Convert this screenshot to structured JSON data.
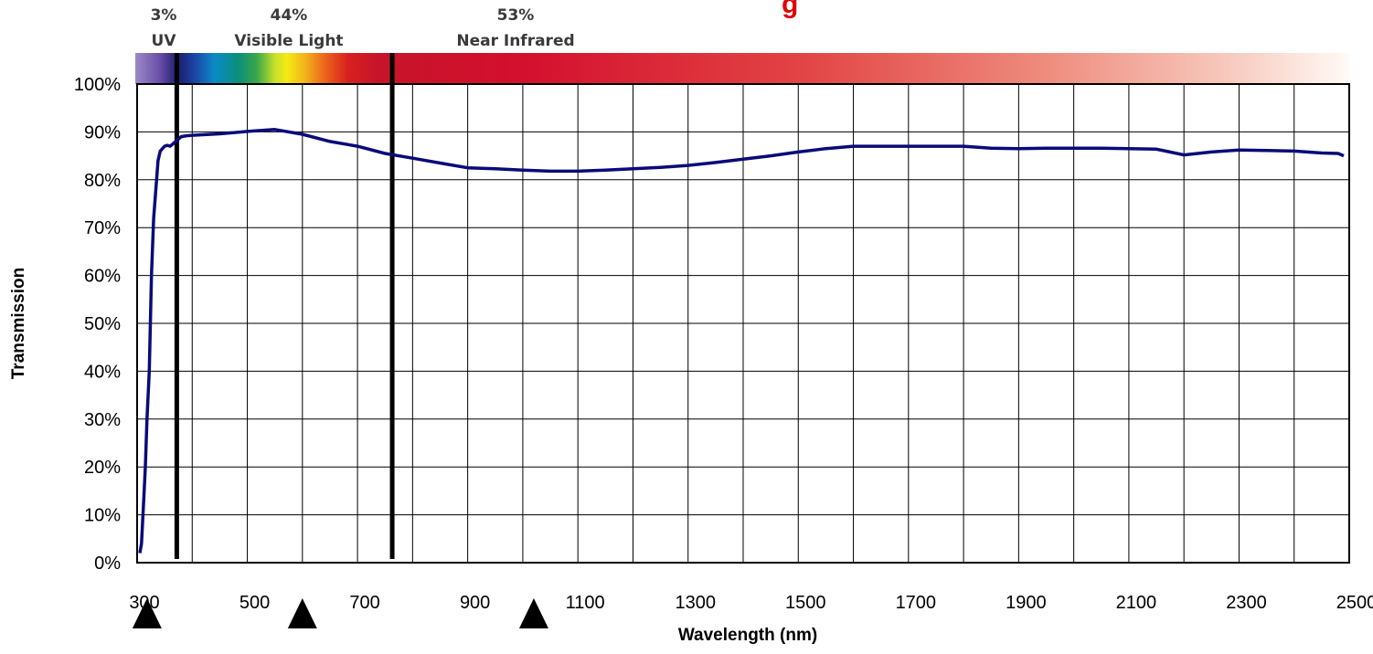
{
  "chart_data": {
    "type": "line",
    "title_fragment": "g",
    "xlabel": "Wavelength (nm)",
    "ylabel": "Transmission",
    "xlim": [
      300,
      2500
    ],
    "ylim": [
      0,
      100
    ],
    "x_ticks": [
      "300",
      "500",
      "700",
      "900",
      "1100",
      "1300",
      "1500",
      "1700",
      "1900",
      "2100",
      "2300",
      "2500"
    ],
    "y_ticks": [
      "0%",
      "10%",
      "20%",
      "30%",
      "40%",
      "50%",
      "60%",
      "70%",
      "80%",
      "90%",
      "100%"
    ],
    "grid": true,
    "series_color": "#0a0a7a",
    "x": [
      305,
      308,
      312,
      315,
      318,
      322,
      326,
      330,
      334,
      338,
      342,
      346,
      350,
      355,
      360,
      365,
      370,
      375,
      380,
      390,
      400,
      450,
      500,
      550,
      600,
      650,
      700,
      750,
      800,
      850,
      900,
      950,
      1000,
      1050,
      1100,
      1150,
      1200,
      1250,
      1300,
      1350,
      1400,
      1450,
      1500,
      1550,
      1600,
      1650,
      1700,
      1750,
      1800,
      1850,
      1900,
      1950,
      2000,
      2050,
      2100,
      2150,
      2200,
      2250,
      2300,
      2350,
      2400,
      2450,
      2480,
      2490
    ],
    "y": [
      2,
      4,
      13,
      20,
      30,
      40,
      60,
      72,
      78,
      84,
      86,
      86.5,
      87,
      87.2,
      87,
      87.5,
      88,
      88.5,
      89,
      89.2,
      89.3,
      89.6,
      90.1,
      90.5,
      89.5,
      88,
      87,
      85.5,
      84.5,
      83.5,
      82.5,
      82.3,
      82,
      81.8,
      81.8,
      82,
      82.3,
      82.6,
      83,
      83.6,
      84.3,
      85,
      85.8,
      86.5,
      87,
      87,
      87,
      87,
      87,
      86.6,
      86.5,
      86.6,
      86.6,
      86.6,
      86.5,
      86.4,
      85.2,
      85.8,
      86.2,
      86.1,
      86,
      85.6,
      85.5,
      85
    ],
    "regions": [
      {
        "percent": "3%",
        "name": "UV"
      },
      {
        "percent": "44%",
        "name": "Visible Light"
      },
      {
        "percent": "53%",
        "name": "Near Infrared"
      }
    ],
    "region_boundaries_nm": [
      372,
      763
    ],
    "markers_nm": [
      318,
      600,
      1020
    ]
  }
}
